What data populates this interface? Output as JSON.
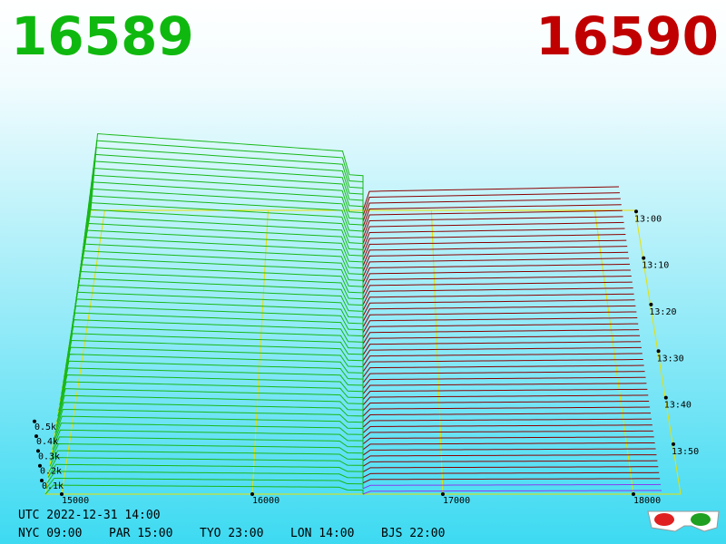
{
  "header": {
    "bid": "16589",
    "ask": "16590"
  },
  "axes": {
    "price_ticks": [
      "15000",
      "16000",
      "17000",
      "18000"
    ],
    "depth_ticks": [
      "0.1k",
      "0.2k",
      "0.3k",
      "0.4k",
      "0.5k"
    ],
    "time_ticks": [
      "13:00",
      "13:10",
      "13:20",
      "13:30",
      "13:40",
      "13:50"
    ]
  },
  "footer": {
    "utc": "UTC 2022-12-31 14:00",
    "cities": [
      "NYC 09:00",
      "PAR 15:00",
      "TYO 23:00",
      "LON 14:00",
      "BJS 22:00"
    ]
  }
}
